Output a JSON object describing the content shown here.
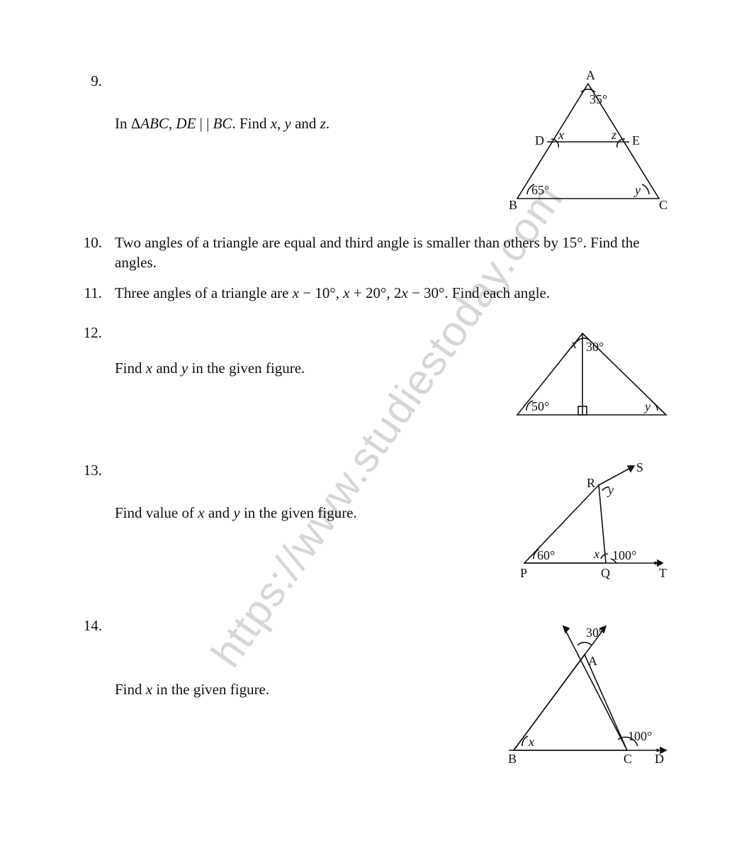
{
  "watermark": "https://www.studiestoday.com",
  "colors": {
    "text": "#111111",
    "figure_stroke": "#111111",
    "watermark": "#d6d6d6",
    "background": "#ffffff"
  },
  "typography": {
    "body_fontsize_pt": 16,
    "font_family": "Times New Roman"
  },
  "questions": [
    {
      "num": "9.",
      "text_html": "In Δ<span class='it'>ABC</span>, <span class='it'>DE</span> | | <span class='it'>BC</span>. Find <span class='it'>x</span>, <span class='it'>y</span> and <span class='it'>z</span>.",
      "figure": {
        "type": "triangle_with_midsegment",
        "labels": {
          "A": "A",
          "B": "B",
          "C": "C",
          "D": "D",
          "E": "E"
        },
        "angle_labels": {
          "top": "35°",
          "left_inner": "x",
          "right_inner": "z",
          "bottom_left": "65°",
          "bottom_right": "y"
        }
      }
    },
    {
      "num": "10.",
      "text_html": "Two angles of a triangle are equal and third angle is smaller than others by 15°. Find the angles."
    },
    {
      "num": "11.",
      "text_html": "Three angles of a triangle are <span class='it'>x</span> − 10°, <span class='it'>x</span> + 20°, 2<span class='it'>x</span> − 30°. Find each angle."
    },
    {
      "num": "12.",
      "text_html": "Find <span class='it'>x</span> and <span class='it'>y</span> in the given figure.",
      "figure": {
        "type": "triangle_with_altitude",
        "angle_labels": {
          "top_left": "x",
          "top_right": "30°",
          "bottom_left": "50°",
          "bottom_right": "y"
        }
      }
    },
    {
      "num": "13.",
      "text_html": "Find value of <span class='it'>x</span> and <span class='it'>y</span> in the given figure.",
      "figure": {
        "type": "triangle_exterior_ray",
        "labels": {
          "P": "P",
          "Q": "Q",
          "R": "R",
          "S": "S",
          "T": "T"
        },
        "angle_labels": {
          "P": "60°",
          "xQ": "x",
          "ext_Q": "100°",
          "R": "y"
        }
      }
    },
    {
      "num": "14.",
      "text_html": "Find <span class='it'>x</span> in the given figure.",
      "figure": {
        "type": "triangle_vertical_angle",
        "labels": {
          "A": "A",
          "B": "B",
          "C": "C",
          "D": "D"
        },
        "angle_labels": {
          "top": "30°",
          "ext_C": "100°",
          "B": "x"
        }
      }
    }
  ]
}
